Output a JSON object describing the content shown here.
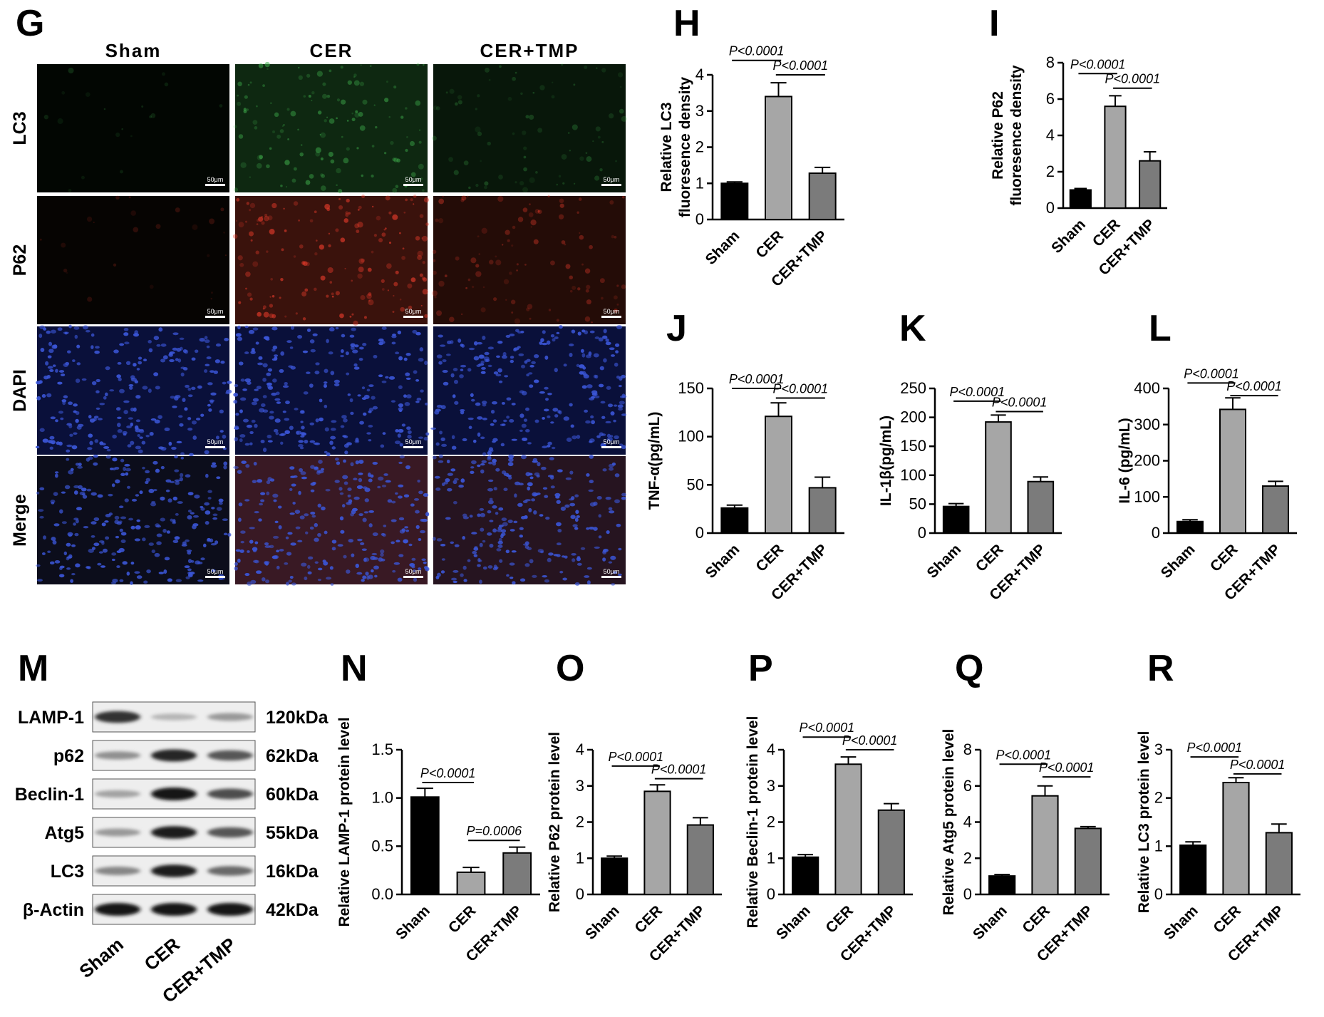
{
  "figure": {
    "panel_letters": {
      "G": "G",
      "H": "H",
      "I": "I",
      "J": "J",
      "K": "K",
      "L": "L",
      "M": "M",
      "N": "N",
      "O": "O",
      "P": "P",
      "Q": "Q",
      "R": "R"
    },
    "micrograph": {
      "columns": [
        "Sham",
        "CER",
        "CER+TMP"
      ],
      "rows": [
        "LC3",
        "P62",
        "DAPI",
        "Merge"
      ],
      "scale_bar": "50μm",
      "intensity": {
        "LC3": [
          0.05,
          0.75,
          0.4
        ],
        "P62": [
          0.08,
          0.9,
          0.55
        ],
        "DAPI": [
          1,
          1,
          1
        ],
        "Merge": [
          1,
          1,
          1
        ]
      },
      "colors": {
        "LC3": "#3fae4c",
        "P62": "#e23a2a",
        "DAPI": "#3b56d8"
      }
    },
    "western_blot": {
      "proteins": [
        "LAMP-1",
        "p62",
        "Beclin-1",
        "Atg5",
        "LC3",
        "β-Actin"
      ],
      "sizes": [
        "120kDa",
        "62kDa",
        "60kDa",
        "55kDa",
        "16kDa",
        "42kDa"
      ],
      "lanes": [
        "Sham",
        "CER",
        "CER+TMP"
      ],
      "band_intensity": [
        [
          0.85,
          0.15,
          0.3
        ],
        [
          0.35,
          0.9,
          0.65
        ],
        [
          0.25,
          1.0,
          0.7
        ],
        [
          0.3,
          0.95,
          0.65
        ],
        [
          0.4,
          0.95,
          0.55
        ],
        [
          1.0,
          1.0,
          1.0
        ]
      ]
    }
  },
  "chart_data": [
    {
      "id": "H",
      "type": "bar",
      "categories": [
        "Sham",
        "CER",
        "CER+TMP"
      ],
      "values": [
        1.0,
        3.4,
        1.28
      ],
      "errors": [
        0.04,
        0.38,
        0.16
      ],
      "ylabel": [
        "Relative LC3",
        "fluoresence density"
      ],
      "ylim": [
        0,
        4
      ],
      "ticks": [
        0,
        1,
        2,
        3,
        4
      ],
      "annotations": [
        {
          "text": "P<0.0001",
          "from": 0,
          "to": 1,
          "y": 4.4
        },
        {
          "text": "P<0.0001",
          "from": 1,
          "to": 2,
          "y": 4.0
        }
      ]
    },
    {
      "id": "I",
      "type": "bar",
      "categories": [
        "Sham",
        "CER",
        "CER+TMP"
      ],
      "values": [
        1.0,
        5.6,
        2.6
      ],
      "errors": [
        0.08,
        0.58,
        0.5
      ],
      "ylabel": [
        "Relative P62",
        "fluoresence density"
      ],
      "ylim": [
        0,
        8
      ],
      "ticks": [
        0,
        2,
        4,
        6,
        8
      ],
      "annotations": [
        {
          "text": "P<0.0001",
          "from": 0,
          "to": 1,
          "y": 7.4
        },
        {
          "text": "P<0.0001",
          "from": 1,
          "to": 2,
          "y": 6.6
        }
      ]
    },
    {
      "id": "J",
      "type": "bar",
      "categories": [
        "Sham",
        "CER",
        "CER+TMP"
      ],
      "values": [
        26,
        121,
        47
      ],
      "errors": [
        3,
        14,
        11
      ],
      "ylabel": [
        "TNF-α(pg/mL)"
      ],
      "ylim": [
        0,
        150
      ],
      "ticks": [
        0,
        50,
        100,
        150
      ],
      "annotations": [
        {
          "text": "P<0.0001",
          "from": 0,
          "to": 1,
          "y": 150
        },
        {
          "text": "P<0.0001",
          "from": 1,
          "to": 2,
          "y": 140
        }
      ]
    },
    {
      "id": "K",
      "type": "bar",
      "categories": [
        "Sham",
        "CER",
        "CER+TMP"
      ],
      "values": [
        46,
        192,
        89
      ],
      "errors": [
        5,
        12,
        8
      ],
      "ylabel": [
        "IL-1β(pg/mL)"
      ],
      "ylim": [
        0,
        250
      ],
      "ticks": [
        0,
        50,
        100,
        150,
        200,
        250
      ],
      "annotations": [
        {
          "text": "P<0.0001",
          "from": 0,
          "to": 1,
          "y": 228
        },
        {
          "text": "P<0.0001",
          "from": 1,
          "to": 2,
          "y": 210
        }
      ]
    },
    {
      "id": "L",
      "type": "bar",
      "categories": [
        "Sham",
        "CER",
        "CER+TMP"
      ],
      "values": [
        32,
        342,
        130
      ],
      "errors": [
        5,
        32,
        13
      ],
      "ylabel": [
        "IL-6 (pg/mL)"
      ],
      "ylim": [
        0,
        400
      ],
      "ticks": [
        0,
        100,
        200,
        300,
        400
      ],
      "annotations": [
        {
          "text": "P<0.0001",
          "from": 0,
          "to": 1,
          "y": 415
        },
        {
          "text": "P<0.0001",
          "from": 1,
          "to": 2,
          "y": 380
        }
      ]
    },
    {
      "id": "N",
      "type": "bar",
      "categories": [
        "Sham",
        "CER",
        "CER+TMP"
      ],
      "values": [
        1.01,
        0.23,
        0.43
      ],
      "errors": [
        0.09,
        0.05,
        0.06
      ],
      "ylabel": [
        "Relative LAMP-1 protein level"
      ],
      "ylim": [
        0,
        1.5
      ],
      "ticks": [
        "0.0",
        "0.5",
        "1.0",
        "1.5"
      ],
      "tickvals": [
        0,
        0.5,
        1,
        1.5
      ],
      "annotations": [
        {
          "text": "P<0.0001",
          "from": 0,
          "to": 1,
          "y": 1.16
        },
        {
          "text": "P=0.0006",
          "from": 1,
          "to": 2,
          "y": 0.56
        }
      ]
    },
    {
      "id": "O",
      "type": "bar",
      "categories": [
        "Sham",
        "CER",
        "CER+TMP"
      ],
      "values": [
        1.0,
        2.85,
        1.92
      ],
      "errors": [
        0.06,
        0.18,
        0.2
      ],
      "ylabel": [
        "Relative P62 protein level"
      ],
      "ylim": [
        0,
        4
      ],
      "ticks": [
        0,
        1,
        2,
        3,
        4
      ],
      "annotations": [
        {
          "text": "P<0.0001",
          "from": 0,
          "to": 1,
          "y": 3.55
        },
        {
          "text": "P<0.0001",
          "from": 1,
          "to": 2,
          "y": 3.2
        }
      ]
    },
    {
      "id": "P",
      "type": "bar",
      "categories": [
        "Sham",
        "CER",
        "CER+TMP"
      ],
      "values": [
        1.03,
        3.6,
        2.33
      ],
      "errors": [
        0.07,
        0.2,
        0.18
      ],
      "ylabel": [
        "Relative Beclin-1 protein level"
      ],
      "ylim": [
        0,
        4
      ],
      "ticks": [
        0,
        1,
        2,
        3,
        4
      ],
      "annotations": [
        {
          "text": "P<0.0001",
          "from": 0,
          "to": 1,
          "y": 4.35
        },
        {
          "text": "P<0.0001",
          "from": 1,
          "to": 2,
          "y": 4.0
        }
      ]
    },
    {
      "id": "Q",
      "type": "bar",
      "categories": [
        "Sham",
        "CER",
        "CER+TMP"
      ],
      "values": [
        1.02,
        5.45,
        3.65
      ],
      "errors": [
        0.08,
        0.55,
        0.1
      ],
      "ylabel": [
        "Relative Atg5 protein level"
      ],
      "ylim": [
        0,
        8
      ],
      "ticks": [
        0,
        2,
        4,
        6,
        8
      ],
      "annotations": [
        {
          "text": "P<0.0001",
          "from": 0,
          "to": 1,
          "y": 7.2
        },
        {
          "text": "P<0.0001",
          "from": 1,
          "to": 2,
          "y": 6.5
        }
      ]
    },
    {
      "id": "R",
      "type": "bar",
      "categories": [
        "Sham",
        "CER",
        "CER+TMP"
      ],
      "values": [
        1.02,
        2.32,
        1.28
      ],
      "errors": [
        0.07,
        0.1,
        0.18
      ],
      "ylabel": [
        "Relative LC3 protein level"
      ],
      "ylim": [
        0,
        3
      ],
      "ticks": [
        0,
        1,
        2,
        3
      ],
      "annotations": [
        {
          "text": "P<0.0001",
          "from": 0,
          "to": 1,
          "y": 2.85
        },
        {
          "text": "P<0.0001",
          "from": 1,
          "to": 2,
          "y": 2.5
        }
      ]
    }
  ]
}
